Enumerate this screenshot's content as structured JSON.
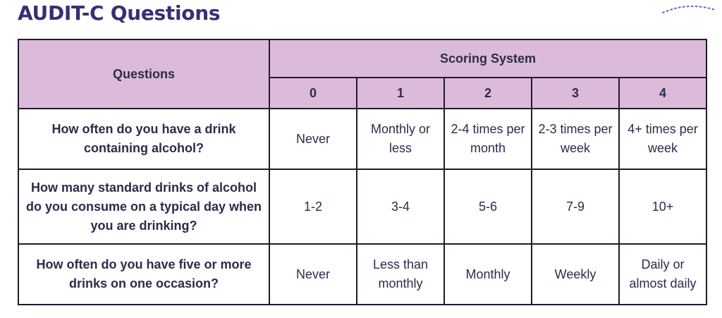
{
  "title": "AUDIT-C Questions",
  "colors": {
    "title": "#3a2e74",
    "header_bg": "#dcbad9",
    "accent": "#6b5fc6"
  },
  "table": {
    "questions_header": "Questions",
    "scoring_header": "Scoring System",
    "scores": [
      "0",
      "1",
      "2",
      "3",
      "4"
    ],
    "rows": [
      {
        "question": "How often do you have a drink containing alcohol?",
        "answers": [
          "Never",
          "Monthly or less",
          "2-4 times per month",
          "2-3 times per week",
          "4+ times per week"
        ]
      },
      {
        "question": "How many standard drinks of alcohol do you consume on a typical day when you are drinking?",
        "answers": [
          "1-2",
          "3-4",
          "5-6",
          "7-9",
          "10+"
        ]
      },
      {
        "question": "How often do you have five or more drinks on one occasion?",
        "answers": [
          "Never",
          "Less than monthly",
          "Monthly",
          "Weekly",
          "Daily or almost daily"
        ]
      }
    ]
  }
}
